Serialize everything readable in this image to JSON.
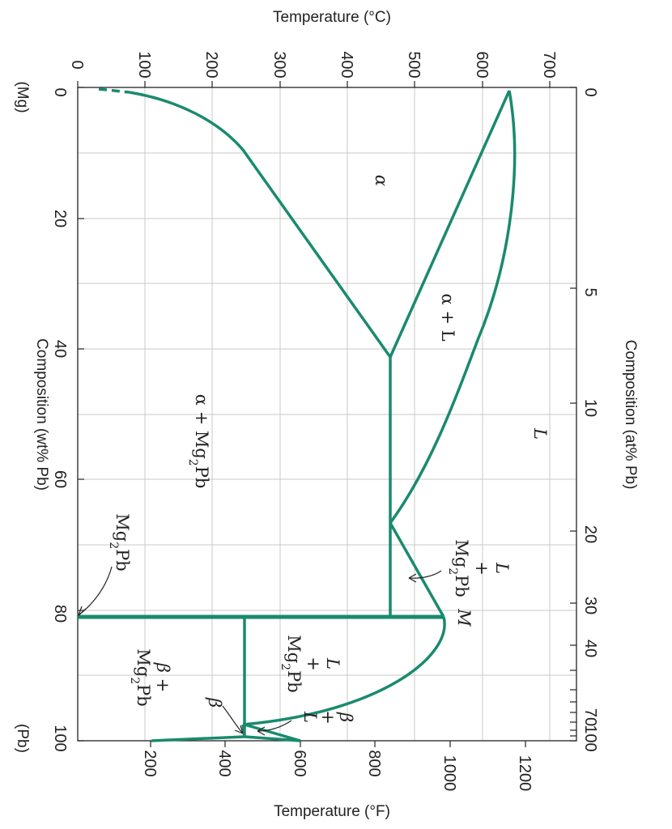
{
  "diagram": {
    "top_axis": {
      "title": "Temperature (°C)",
      "ticks": [
        "0",
        "100",
        "200",
        "300",
        "400",
        "500",
        "600",
        "700"
      ]
    },
    "bottom_axis": {
      "title": "Temperature (°F)",
      "ticks": [
        "200",
        "400",
        "600",
        "800",
        "1000",
        "1200"
      ]
    },
    "left_axis": {
      "title": "Composition (wt% Pb)",
      "ticks": [
        "0",
        "20",
        "40",
        "60",
        "80",
        "100"
      ],
      "start_label": "(Mg)",
      "end_label": "(Pb)"
    },
    "right_axis": {
      "title": "Composition (at% Pb)",
      "ticks": [
        "0",
        "5",
        "10",
        "20",
        "30",
        "40",
        "70",
        "100"
      ]
    },
    "regions": {
      "alpha": "α",
      "alpha_plus_L": "α + L",
      "L": "L",
      "alpha_plus_Mg2Pb_a": "α + Mg",
      "alpha_plus_Mg2Pb_sub": "2",
      "alpha_plus_Mg2Pb_b": "Pb",
      "L_plus_Mg2Pb_left_L": "L",
      "L_plus_Mg2Pb_left_plus": "+",
      "L_plus_Mg2Pb_left_mg": "Mg",
      "L_plus_Mg2Pb_left_sub": "2",
      "L_plus_Mg2Pb_left_pb": "Pb",
      "M": "M",
      "L_plus_Mg2Pb_right_L": "L",
      "L_plus_Mg2Pb_right_plus": "+",
      "L_plus_Mg2Pb_right_mg": "Mg",
      "L_plus_Mg2Pb_right_sub": "2",
      "L_plus_Mg2Pb_right_pb": "Pb",
      "beta_plus_L_beta": "β",
      "beta_plus_L_plus": "+",
      "beta_plus_L_L": "L",
      "beta_plus_Mg2Pb_beta": "β +",
      "beta_plus_Mg2Pb_mg": "Mg",
      "beta_plus_Mg2Pb_sub": "2",
      "beta_plus_Mg2Pb_pb": "Pb",
      "beta": "β",
      "Mg2Pb_mg": "Mg",
      "Mg2Pb_sub": "2",
      "Mg2Pb_pb": "Pb"
    },
    "colors": {
      "phase_boundary": "#1a8a6e",
      "grid": "#c8c8c8",
      "axis": "#222222"
    }
  }
}
